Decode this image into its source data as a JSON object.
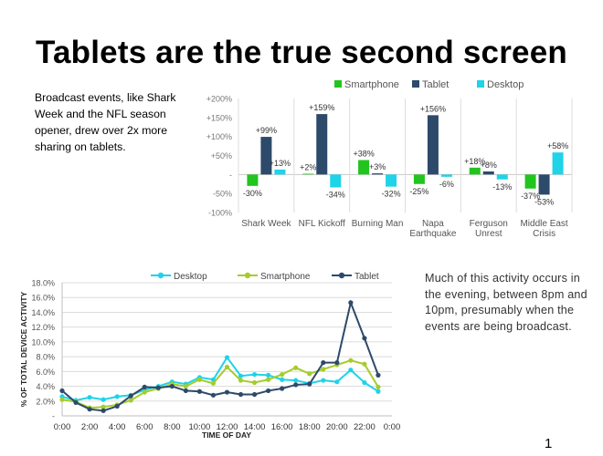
{
  "slide": {
    "title": "Tablets are the true second screen",
    "note_top": "Broadcast events, like Shark Week and the NFL season opener, drew over 2x more sharing on tablets.",
    "note_bottom": "Much of this activity occurs in the evening, between 8pm and 10pm, presumably when the events are being broadcast.",
    "page_number": "1"
  },
  "chart_data": [
    {
      "type": "bar",
      "title": "",
      "categories": [
        "Shark Week",
        "NFL Kickoff",
        "Burning Man",
        "Napa Earthquake",
        "Ferguson Unrest",
        "Middle East Crisis"
      ],
      "category_lines": [
        [
          "Shark Week"
        ],
        [
          "NFL Kickoff"
        ],
        [
          "Burning Man"
        ],
        [
          "Napa",
          "Earthquake"
        ],
        [
          "Ferguson",
          "Unrest"
        ],
        [
          "Middle East",
          "Crisis"
        ]
      ],
      "series": [
        {
          "name": "Smartphone",
          "color": "#22c41e",
          "values": [
            -30,
            2,
            38,
            -25,
            18,
            -37
          ],
          "labels": [
            "-30%",
            "+2%",
            "+38%",
            "-25%",
            "+18%",
            "-37%"
          ]
        },
        {
          "name": "Tablet",
          "color": "#2d4a6b",
          "values": [
            99,
            159,
            3,
            156,
            8,
            -53
          ],
          "labels": [
            "+99%",
            "+159%",
            "+3%",
            "+156%",
            "+8%",
            "-53%"
          ]
        },
        {
          "name": "Desktop",
          "color": "#1fd3e8",
          "values": [
            13,
            -34,
            -32,
            -6,
            -13,
            58
          ],
          "labels": [
            "+13%",
            "-34%",
            "-32%",
            "-6%",
            "-13%",
            "+58%"
          ]
        }
      ],
      "ylim": [
        -100,
        200
      ],
      "yticks": [
        200,
        150,
        100,
        50,
        0,
        -50,
        -100
      ],
      "ytick_labels": [
        "+200%",
        "+150%",
        "+100%",
        "+50%",
        "-",
        "-50%",
        "-100%"
      ],
      "legend": "top"
    },
    {
      "type": "line",
      "title": "",
      "xlabel": "TIME OF DAY",
      "ylabel": "% OF TOTAL DEVICE ACTIVITY",
      "x": [
        0,
        1,
        2,
        3,
        4,
        5,
        6,
        7,
        8,
        9,
        10,
        11,
        12,
        13,
        14,
        15,
        16,
        17,
        18,
        19,
        20,
        21,
        22,
        23
      ],
      "xticks": [
        0,
        2,
        4,
        6,
        8,
        10,
        12,
        14,
        16,
        18,
        20,
        22,
        24
      ],
      "xtick_labels": [
        "0:00",
        "2:00",
        "4:00",
        "6:00",
        "8:00",
        "10:00",
        "12:00",
        "14:00",
        "16:00",
        "18:00",
        "20:00",
        "22:00",
        "0:00"
      ],
      "yticks": [
        0,
        2,
        4,
        6,
        8,
        10,
        12,
        14,
        16,
        18
      ],
      "ytick_labels": [
        "-",
        "2.0%",
        "4.0%",
        "6.0%",
        "8.0%",
        "10.0%",
        "12.0%",
        "14.0%",
        "16.0%",
        "18.0%"
      ],
      "ylim": [
        0,
        18
      ],
      "xlim": [
        0,
        24
      ],
      "series": [
        {
          "name": "Desktop",
          "color": "#1fd3e8",
          "values": [
            2.6,
            2.1,
            2.5,
            2.2,
            2.6,
            2.8,
            3.5,
            4.0,
            4.6,
            4.3,
            5.2,
            4.9,
            7.9,
            5.4,
            5.6,
            5.5,
            4.9,
            4.8,
            4.4,
            4.8,
            4.6,
            6.2,
            4.5,
            3.3
          ]
        },
        {
          "name": "Smartphone",
          "color": "#a6cc2b",
          "values": [
            2.2,
            1.9,
            1.1,
            1.2,
            1.5,
            2.1,
            3.2,
            3.7,
            4.3,
            4.0,
            4.9,
            4.4,
            6.6,
            4.8,
            4.5,
            4.9,
            5.6,
            6.5,
            5.7,
            6.3,
            6.9,
            7.5,
            7.0,
            3.9
          ]
        },
        {
          "name": "Tablet",
          "color": "#2d4a6b",
          "values": [
            3.4,
            1.8,
            0.9,
            0.7,
            1.3,
            2.7,
            3.9,
            3.8,
            4.0,
            3.4,
            3.3,
            2.8,
            3.2,
            2.9,
            2.9,
            3.4,
            3.7,
            4.2,
            4.3,
            7.2,
            7.2,
            15.3,
            10.5,
            5.5
          ]
        }
      ],
      "legend": "top"
    }
  ]
}
